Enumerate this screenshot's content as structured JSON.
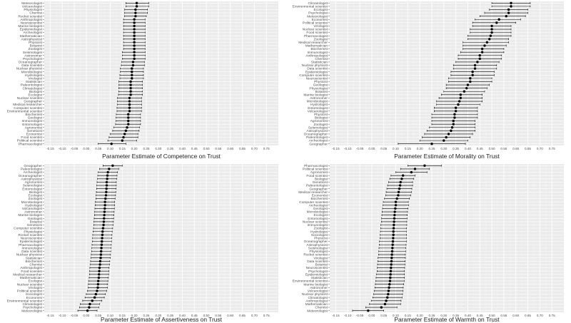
{
  "chart_data": [
    {
      "type": "scatter",
      "subtype": "forest-plot",
      "title": "",
      "xlabel": "Parameter Estimate of Competence on Trust",
      "ylabel": "",
      "xlim": [
        -0.175,
        0.8
      ],
      "xticks": [
        -0.15,
        -0.1,
        -0.05,
        0.0,
        0.05,
        0.1,
        0.15,
        0.2,
        0.25,
        0.3,
        0.35,
        0.4,
        0.45,
        0.5,
        0.55,
        0.6,
        0.65,
        0.7,
        0.75
      ],
      "xtick_labels": [
        "-0.15",
        "-0.10",
        "-0.05",
        "0.00",
        "0.05",
        "0.10",
        "0.15",
        "0.20",
        "0.25",
        "0.30",
        "0.35",
        "0.40",
        "0.45",
        "0.50",
        "0.55",
        "0.60",
        "0.65",
        "0.70",
        "0.75"
      ],
      "categories": [
        "Meteorologist",
        "Volcanologist",
        "Physiologist",
        "Chemist",
        "Rocket scientist",
        "Anthropologist",
        "Neuroscientist",
        "Marine biologist",
        "Epidemiologist",
        "Archeologist",
        "Mathematician",
        "Astrophysicist",
        "Physicist",
        "Botanist",
        "Zoologist",
        "Seismologist",
        "Astronomer",
        "Psychologist",
        "Oceanographer",
        "Data scientist",
        "Nuclear physicist",
        "Microbiologist",
        "Hydrologist",
        "Virologist",
        "Statistician",
        "Paleontologist",
        "Climatologist",
        "Biologist",
        "Ecologist",
        "Nuclear scientist",
        "Geographer",
        "Medical researcher",
        "Computer scientist",
        "Environmental scientist",
        "Biochemist",
        "Geologist",
        "Immunologist",
        "Entomologist",
        "Agronomist",
        "Geneticist",
        "Economist",
        "Food scientist",
        "Political scientist",
        "Pharmacologist"
      ],
      "series": [
        {
          "estimate": [
            0.21,
            0.21,
            0.205,
            0.205,
            0.205,
            0.2,
            0.2,
            0.2,
            0.2,
            0.2,
            0.2,
            0.2,
            0.2,
            0.2,
            0.2,
            0.2,
            0.2,
            0.2,
            0.195,
            0.195,
            0.19,
            0.19,
            0.19,
            0.19,
            0.185,
            0.185,
            0.185,
            0.185,
            0.185,
            0.18,
            0.18,
            0.18,
            0.18,
            0.18,
            0.175,
            0.175,
            0.175,
            0.175,
            0.17,
            0.165,
            0.16,
            0.155,
            0.15,
            0.105
          ],
          "lower": [
            0.165,
            0.165,
            0.16,
            0.16,
            0.16,
            0.155,
            0.155,
            0.155,
            0.155,
            0.155,
            0.155,
            0.155,
            0.155,
            0.155,
            0.155,
            0.15,
            0.15,
            0.15,
            0.148,
            0.146,
            0.142,
            0.142,
            0.14,
            0.14,
            0.136,
            0.136,
            0.135,
            0.135,
            0.134,
            0.13,
            0.13,
            0.13,
            0.128,
            0.128,
            0.125,
            0.124,
            0.124,
            0.122,
            0.115,
            0.11,
            0.1,
            0.095,
            0.09,
            0.05
          ],
          "upper": [
            0.26,
            0.26,
            0.255,
            0.255,
            0.25,
            0.245,
            0.245,
            0.245,
            0.245,
            0.245,
            0.245,
            0.245,
            0.245,
            0.245,
            0.245,
            0.245,
            0.245,
            0.245,
            0.242,
            0.242,
            0.238,
            0.238,
            0.238,
            0.238,
            0.234,
            0.234,
            0.234,
            0.234,
            0.234,
            0.23,
            0.23,
            0.23,
            0.23,
            0.23,
            0.226,
            0.226,
            0.226,
            0.226,
            0.222,
            0.22,
            0.215,
            0.215,
            0.21,
            0.165
          ]
        }
      ]
    },
    {
      "type": "scatter",
      "subtype": "forest-plot",
      "title": "",
      "xlabel": "Parameter Estimate of Morality on Trust",
      "ylabel": "",
      "xlim": [
        -0.175,
        0.8
      ],
      "xticks": [
        -0.15,
        -0.1,
        -0.05,
        0.0,
        0.05,
        0.1,
        0.15,
        0.2,
        0.25,
        0.3,
        0.35,
        0.4,
        0.45,
        0.5,
        0.55,
        0.6,
        0.65,
        0.7,
        0.75
      ],
      "xtick_labels": [
        "-0.15",
        "-0.10",
        "-0.05",
        "0.00",
        "0.05",
        "0.10",
        "0.15",
        "0.20",
        "0.25",
        "0.30",
        "0.35",
        "0.40",
        "0.45",
        "0.50",
        "0.55",
        "0.60",
        "0.65",
        "0.70",
        "0.75"
      ],
      "categories": [
        "Climatologist",
        "Environmental scientist",
        "Ecologist",
        "Psychologist",
        "Meteorologist",
        "Economist",
        "Political scientist",
        "Virologist",
        "Nuclear scientist",
        "Food scientist",
        "Pharmacologist",
        "Zoologist",
        "Medical researcher",
        "Mathematician",
        "Biochemist",
        "Immunologist",
        "Anthropologist",
        "Chemist",
        "Statistician",
        "Nuclear physicist",
        "Data scientist",
        "Epidemiologist",
        "Computer scientist",
        "Neuroscientist",
        "Physicist",
        "Geologist",
        "Physiologist",
        "Botanist",
        "Marine biologist",
        "Astronomer",
        "Microbiologist",
        "Hydrologist",
        "Entomologist",
        "Volcanologist",
        "Physicist",
        "Biologist",
        "Agronomist",
        "Zoologist",
        "Seismologist",
        "Astrophysicist",
        "Oceanographer",
        "Paleontologist",
        "Archeologist",
        "Geographer"
      ],
      "series": [
        {
          "estimate": [
            0.58,
            0.58,
            0.57,
            0.57,
            0.56,
            0.53,
            0.52,
            0.5,
            0.5,
            0.5,
            0.495,
            0.49,
            0.48,
            0.47,
            0.46,
            0.46,
            0.45,
            0.45,
            0.44,
            0.43,
            0.43,
            0.42,
            0.42,
            0.41,
            0.41,
            0.4,
            0.395,
            0.385,
            0.37,
            0.37,
            0.365,
            0.36,
            0.35,
            0.35,
            0.345,
            0.345,
            0.34,
            0.34,
            0.335,
            0.33,
            0.32,
            0.31,
            0.3,
            0.25
          ],
          "lower": [
            0.5,
            0.5,
            0.49,
            0.47,
            0.45,
            0.43,
            0.42,
            0.42,
            0.41,
            0.41,
            0.4,
            0.4,
            0.38,
            0.38,
            0.38,
            0.37,
            0.36,
            0.36,
            0.35,
            0.34,
            0.34,
            0.33,
            0.33,
            0.32,
            0.32,
            0.31,
            0.31,
            0.3,
            0.29,
            0.28,
            0.27,
            0.27,
            0.26,
            0.26,
            0.25,
            0.25,
            0.25,
            0.25,
            0.24,
            0.23,
            0.22,
            0.21,
            0.2,
            0.11
          ],
          "upper": [
            0.66,
            0.66,
            0.65,
            0.65,
            0.64,
            0.62,
            0.6,
            0.58,
            0.58,
            0.58,
            0.58,
            0.57,
            0.57,
            0.56,
            0.55,
            0.55,
            0.54,
            0.54,
            0.53,
            0.52,
            0.52,
            0.51,
            0.51,
            0.5,
            0.5,
            0.49,
            0.48,
            0.47,
            0.46,
            0.46,
            0.46,
            0.45,
            0.44,
            0.44,
            0.44,
            0.44,
            0.43,
            0.43,
            0.43,
            0.43,
            0.42,
            0.41,
            0.4,
            0.39
          ]
        }
      ]
    },
    {
      "type": "scatter",
      "subtype": "forest-plot",
      "title": "",
      "xlabel": "Parameter Estimate of Assertiveness on Trust",
      "ylabel": "",
      "xlim": [
        -0.175,
        0.8
      ],
      "xticks": [
        -0.15,
        -0.1,
        -0.05,
        0.0,
        0.05,
        0.1,
        0.15,
        0.2,
        0.25,
        0.3,
        0.35,
        0.4,
        0.45,
        0.5,
        0.55,
        0.6,
        0.65,
        0.7,
        0.75
      ],
      "xtick_labels": [
        "-0.15",
        "-0.10",
        "-0.05",
        "0.00",
        "0.05",
        "0.10",
        "0.15",
        "0.20",
        "0.25",
        "0.30",
        "0.35",
        "0.40",
        "0.45",
        "0.50",
        "0.55",
        "0.60",
        "0.65",
        "0.70",
        "0.75"
      ],
      "categories": [
        "Geographer",
        "Paleontologist",
        "Archeologist",
        "Oceanographer",
        "Astrophysicist",
        "Agronomist",
        "Seismologist",
        "Entomologist",
        "Biologist",
        "Ecologist",
        "Zoologist",
        "Microbiologist",
        "Hydrologist",
        "Volcanologist",
        "Astronomer",
        "Marine biologist",
        "Geologist",
        "Botanist",
        "Geneticist",
        "Computer scientist",
        "Physiologist",
        "Rocket scientist",
        "Neuroscientist",
        "Epidemiologist",
        "Pharmacologist",
        "Immunologist",
        "Data scientist",
        "Nuclear physicist",
        "Statistician",
        "Biochemist",
        "Chemist",
        "Anthropologist",
        "Food scientist",
        "Medical researcher",
        "Mathematician",
        "Ecologist",
        "Nuclear scientist",
        "Virologist",
        "Political scientist",
        "Sociologist",
        "Economist",
        "Environmental scientist",
        "Climatologist",
        "Psychologist",
        "Meteorologist"
      ],
      "series": [
        {
          "estimate": [
            0.11,
            0.095,
            0.09,
            0.088,
            0.087,
            0.085,
            0.085,
            0.084,
            0.083,
            0.082,
            0.08,
            0.078,
            0.078,
            0.077,
            0.076,
            0.075,
            0.074,
            0.073,
            0.072,
            0.07,
            0.068,
            0.067,
            0.066,
            0.065,
            0.064,
            0.063,
            0.062,
            0.061,
            0.06,
            0.058,
            0.057,
            0.055,
            0.054,
            0.053,
            0.052,
            0.05,
            0.049,
            0.048,
            0.045,
            0.04,
            0.035,
            0.025,
            0.015,
            0.012,
            0.005
          ],
          "lower": [
            0.07,
            0.055,
            0.05,
            0.048,
            0.047,
            0.045,
            0.044,
            0.043,
            0.042,
            0.041,
            0.04,
            0.038,
            0.037,
            0.036,
            0.035,
            0.034,
            0.033,
            0.032,
            0.031,
            0.03,
            0.028,
            0.027,
            0.026,
            0.025,
            0.024,
            0.023,
            0.022,
            0.021,
            0.02,
            0.018,
            0.017,
            0.015,
            0.014,
            0.013,
            0.012,
            0.01,
            0.009,
            0.008,
            0.005,
            0.0,
            -0.005,
            -0.015,
            -0.025,
            -0.028,
            -0.035
          ],
          "upper": [
            0.15,
            0.135,
            0.13,
            0.128,
            0.127,
            0.125,
            0.125,
            0.124,
            0.123,
            0.122,
            0.12,
            0.118,
            0.118,
            0.117,
            0.116,
            0.115,
            0.114,
            0.113,
            0.112,
            0.11,
            0.108,
            0.107,
            0.106,
            0.105,
            0.104,
            0.103,
            0.102,
            0.101,
            0.1,
            0.098,
            0.097,
            0.095,
            0.094,
            0.093,
            0.092,
            0.09,
            0.089,
            0.088,
            0.085,
            0.08,
            0.075,
            0.065,
            0.055,
            0.052,
            0.045
          ]
        }
      ]
    },
    {
      "type": "scatter",
      "subtype": "forest-plot",
      "title": "",
      "xlabel": "Parameter Estimate of Warmth on Trust",
      "ylabel": "",
      "xlim": [
        -0.175,
        0.8
      ],
      "xticks": [
        -0.15,
        -0.1,
        -0.05,
        0.0,
        0.05,
        0.1,
        0.15,
        0.2,
        0.25,
        0.3,
        0.35,
        0.4,
        0.45,
        0.5,
        0.55,
        0.6,
        0.65,
        0.7,
        0.75
      ],
      "xtick_labels": [
        "-0.15",
        "-0.10",
        "-0.05",
        "0.00",
        "0.05",
        "0.10",
        "0.15",
        "0.20",
        "0.25",
        "0.30",
        "0.35",
        "0.40",
        "0.45",
        "0.50",
        "0.55",
        "0.60",
        "0.65",
        "0.70",
        "0.75"
      ],
      "categories": [
        "Pharmacologist",
        "Political scientist",
        "Agronomist",
        "Food scientist",
        "Biologist",
        "Geneticist",
        "Paleontologist",
        "Geographer",
        "Medical researcher",
        "Economist",
        "Biochemist",
        "Computer scientist",
        "Archeologist",
        "Geologist",
        "Microbiologist",
        "Ecologist",
        "Entomologist",
        "Nuclear scientist",
        "Immunologist",
        "Zoologist",
        "Hydrologist",
        "Sociologist",
        "Physicist",
        "Oceanographer",
        "Astrophysicist",
        "Seismologist",
        "Physiologist",
        "Rocket scientist",
        "Virologist",
        "Data scientist",
        "Botanist",
        "Neuroscientist",
        "Psychologist",
        "Epidemiologist",
        "Statistician",
        "Environmental scientist",
        "Marine biologist",
        "Astronomer",
        "Volcanologist",
        "Nuclear physicist",
        "Climatologist",
        "Anthropologist",
        "Mathematician",
        "Chemist",
        "Meteorologist"
      ],
      "series": [
        {
          "estimate": [
            0.22,
            0.18,
            0.165,
            0.13,
            0.125,
            0.12,
            0.118,
            0.115,
            0.112,
            0.11,
            0.105,
            0.1,
            0.1,
            0.098,
            0.096,
            0.095,
            0.094,
            0.093,
            0.092,
            0.091,
            0.09,
            0.09,
            0.089,
            0.088,
            0.087,
            0.086,
            0.085,
            0.084,
            0.083,
            0.082,
            0.081,
            0.08,
            0.079,
            0.078,
            0.077,
            0.076,
            0.074,
            0.072,
            0.07,
            0.068,
            0.065,
            0.06,
            0.055,
            0.04,
            -0.015
          ],
          "lower": [
            0.15,
            0.12,
            0.1,
            0.08,
            0.075,
            0.07,
            0.066,
            0.063,
            0.06,
            0.058,
            0.053,
            0.048,
            0.047,
            0.045,
            0.043,
            0.042,
            0.041,
            0.04,
            0.038,
            0.037,
            0.036,
            0.035,
            0.034,
            0.032,
            0.031,
            0.03,
            0.029,
            0.028,
            0.026,
            0.025,
            0.024,
            0.023,
            0.022,
            0.02,
            0.018,
            0.017,
            0.015,
            0.013,
            0.01,
            0.008,
            0.004,
            -0.002,
            -0.01,
            -0.025,
            -0.08
          ],
          "upper": [
            0.29,
            0.24,
            0.23,
            0.18,
            0.175,
            0.17,
            0.17,
            0.167,
            0.165,
            0.162,
            0.157,
            0.152,
            0.153,
            0.151,
            0.149,
            0.148,
            0.147,
            0.146,
            0.146,
            0.145,
            0.144,
            0.145,
            0.144,
            0.144,
            0.143,
            0.142,
            0.141,
            0.14,
            0.14,
            0.139,
            0.138,
            0.137,
            0.136,
            0.136,
            0.136,
            0.135,
            0.133,
            0.131,
            0.13,
            0.128,
            0.126,
            0.122,
            0.12,
            0.105,
            0.05
          ]
        }
      ]
    }
  ]
}
